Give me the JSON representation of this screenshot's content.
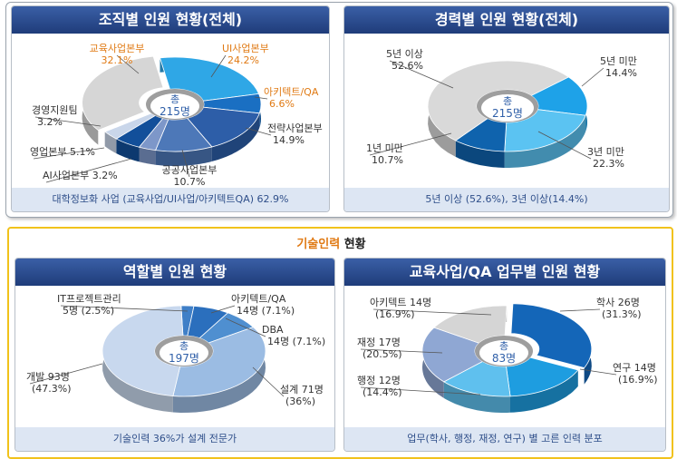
{
  "section_heading": {
    "highlight": "기술인력",
    "rest": " 현황"
  },
  "chart_data": [
    {
      "type": "pie",
      "title": "조직별 인원 현황(전체)",
      "center": {
        "line1": "총",
        "line2": "215명"
      },
      "categories": [
        "UI사업본부",
        "아키텍트/QA",
        "전략사업본부",
        "공공사업본부",
        "AI사업본부",
        "영업본부",
        "경영지원팀",
        "교육사업본부"
      ],
      "values": [
        24.2,
        6.6,
        14.9,
        10.7,
        3.2,
        5.1,
        3.2,
        32.1
      ],
      "colors": [
        "#2fa7e6",
        "#1a6fc2",
        "#2d5ea8",
        "#4d78b8",
        "#7d97c9",
        "#124f9a",
        "#c9d6ea",
        "#d6d6d6"
      ],
      "labels": [
        {
          "name": "UI사업본부",
          "value": "24.2%",
          "color": "#e07a14"
        },
        {
          "name": "아키텍트/QA",
          "value": "6.6%",
          "color": "#e07a14"
        },
        {
          "name": "전략사업본부",
          "value": "14.9%",
          "color": "#333333"
        },
        {
          "name": "공공사업본부",
          "value": "10.7%",
          "color": "#333333"
        },
        {
          "name": "AI사업본부 3.2%",
          "value": "",
          "color": "#333333"
        },
        {
          "name": "영업본부 5.1%",
          "value": "",
          "color": "#333333"
        },
        {
          "name": "경영지원팀",
          "value": "3.2%",
          "color": "#333333"
        },
        {
          "name": "교육사업본부",
          "value": "32.1%",
          "color": "#e07a14"
        }
      ],
      "caption": "대학정보화 사업 (교육사업/UI사업/아키텍트QA) 62.9%"
    },
    {
      "type": "pie",
      "title": "경력별 인원 현황(전체)",
      "center": {
        "line1": "총",
        "line2": "215명"
      },
      "categories": [
        "5년 미만",
        "3년 미만",
        "1년 미만",
        "5년 이상"
      ],
      "values": [
        14.4,
        22.3,
        10.7,
        52.6
      ],
      "colors": [
        "#1ea2e8",
        "#5bc3f2",
        "#0f63ad",
        "#d9d9d9"
      ],
      "labels": [
        {
          "name": "5년 미만",
          "value": "14.4%",
          "color": "#333333"
        },
        {
          "name": "3년 미만",
          "value": "22.3%",
          "color": "#333333"
        },
        {
          "name": "1년 미만",
          "value": "10.7%",
          "color": "#333333"
        },
        {
          "name": "5년 이상",
          "value": "52.6%",
          "color": "#333333"
        }
      ],
      "caption": "5년 이상 (52.6%), 3년 이상(14.4%)"
    },
    {
      "type": "pie",
      "title": "역할별 인원 현황",
      "center": {
        "line1": "총",
        "line2": "197명"
      },
      "categories": [
        "IT프로젝트관리",
        "아키텍트/QA",
        "DBA",
        "설계",
        "개발"
      ],
      "values": [
        2.5,
        7.1,
        7.1,
        36,
        47.3
      ],
      "colors": [
        "#3f7fc7",
        "#2b6fbd",
        "#4f8fd0",
        "#9bbce3",
        "#c8d8ee"
      ],
      "labels": [
        {
          "name": "IT프로젝트관리",
          "value": "5명 (2.5%)",
          "color": "#333333"
        },
        {
          "name": "아키텍트/QA",
          "value": "14명 (7.1%)",
          "color": "#333333"
        },
        {
          "name": "DBA",
          "value": "14명 (7.1%)",
          "color": "#333333"
        },
        {
          "name": "설계 71명",
          "value": "(36%)",
          "color": "#333333"
        },
        {
          "name": "개발 93명",
          "value": "(47.3%)",
          "color": "#333333"
        }
      ],
      "caption": "기술인력 36%가 설계 전문가"
    },
    {
      "type": "pie",
      "title": "교육사업/QA 업무별 인원 현황",
      "center": {
        "line1": "총",
        "line2": "83명"
      },
      "categories": [
        "학사",
        "연구",
        "행정",
        "재정",
        "아키텍트"
      ],
      "values": [
        31.3,
        16.9,
        14.4,
        20.5,
        16.9
      ],
      "colors": [
        "#1466b8",
        "#1e9de0",
        "#5fc0ee",
        "#8fa7d3",
        "#d5d5d5"
      ],
      "labels": [
        {
          "name": "학사 26명",
          "value": "(31.3%)",
          "color": "#333333"
        },
        {
          "name": "연구 14명",
          "value": "(16.9%)",
          "color": "#333333"
        },
        {
          "name": "행정 12명",
          "value": "(14.4%)",
          "color": "#333333"
        },
        {
          "name": "재정 17명",
          "value": "(20.5%)",
          "color": "#333333"
        },
        {
          "name": "아키텍트 14명",
          "value": "(16.9%)",
          "color": "#333333"
        }
      ],
      "caption": "업무(학사, 행정, 재정, 연구) 별 고른 인력 분포"
    }
  ]
}
